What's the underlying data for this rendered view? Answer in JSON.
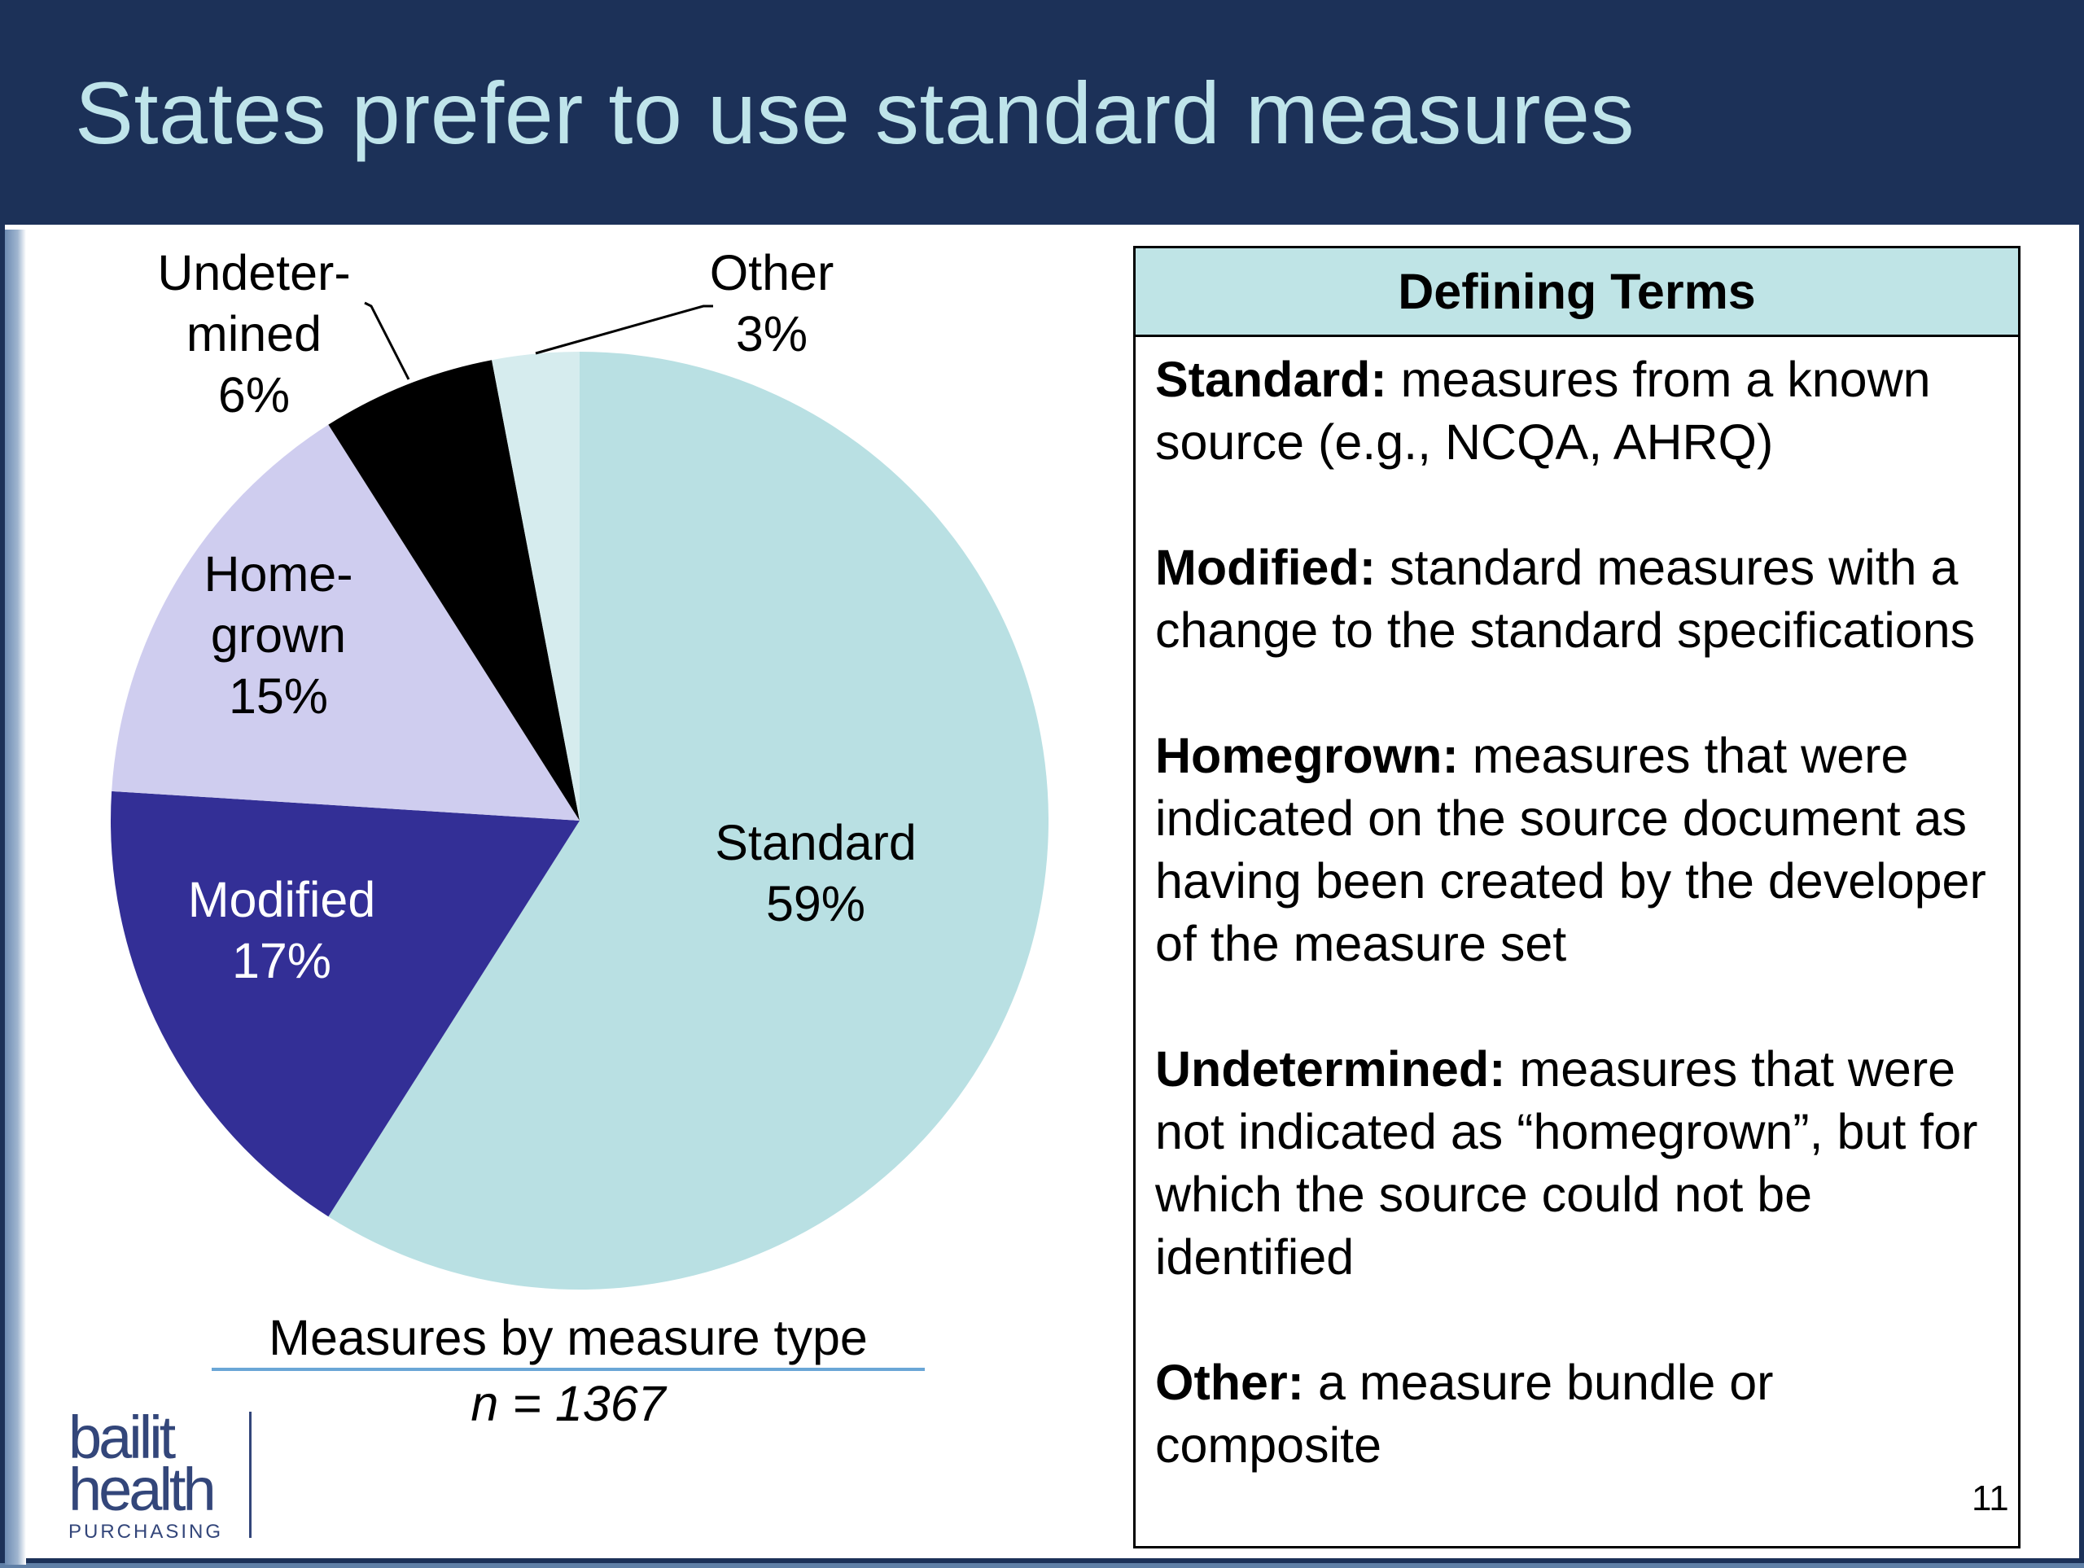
{
  "slide": {
    "title": "States prefer to use standard measures",
    "page_number": "11"
  },
  "chart_caption": {
    "label": "Measures by measure type",
    "n": "n = 1367"
  },
  "logo": {
    "line1": "bailit",
    "line2": "health",
    "line3": "PURCHASING"
  },
  "terms": {
    "header": "Defining Terms",
    "items": [
      {
        "name": "Standard:",
        "text": " measures from a known source (e.g., NCQA, AHRQ)"
      },
      {
        "name": "Modified:",
        "text": " standard measures with a change to the standard specifications"
      },
      {
        "name": "Homegrown:",
        "text": " measures that were indicated on the source document as having been created by the developer of the measure set"
      },
      {
        "name": "Undetermined:",
        "text": " measures that were not indicated as “homegrown”, but for which the source could not be identified"
      },
      {
        "name": "Other:",
        "text": " a measure bundle or composite"
      }
    ]
  },
  "chart_data": {
    "type": "pie",
    "start_angle_deg": 0,
    "direction": "clockwise",
    "slices": [
      {
        "name": "Standard",
        "label_lines": [
          "Standard",
          "59%"
        ],
        "value": 59,
        "color": "#b9e0e3",
        "label_color": "#000000"
      },
      {
        "name": "Modified",
        "label_lines": [
          "Modified",
          "17%"
        ],
        "value": 17,
        "color": "#332f96",
        "label_color": "#ffffff"
      },
      {
        "name": "Homegrown",
        "label_lines": [
          "Home-",
          "grown",
          "15%"
        ],
        "value": 15,
        "color": "#cfcdef",
        "label_color": "#000000"
      },
      {
        "name": "Undetermined",
        "label_lines": [
          "Undeter-",
          "mined",
          "6%"
        ],
        "value": 6,
        "color": "#000000",
        "label_color": "#000000"
      },
      {
        "name": "Other",
        "label_lines": [
          "Other",
          "3%"
        ],
        "value": 3,
        "color": "#d6ecee",
        "label_color": "#000000"
      }
    ]
  },
  "colors": {
    "title_bar": "#1c3158",
    "title_text": "#bfe4ea",
    "terms_header_bg": "#bfe4e6",
    "caption_rule": "#6aa6d6"
  }
}
